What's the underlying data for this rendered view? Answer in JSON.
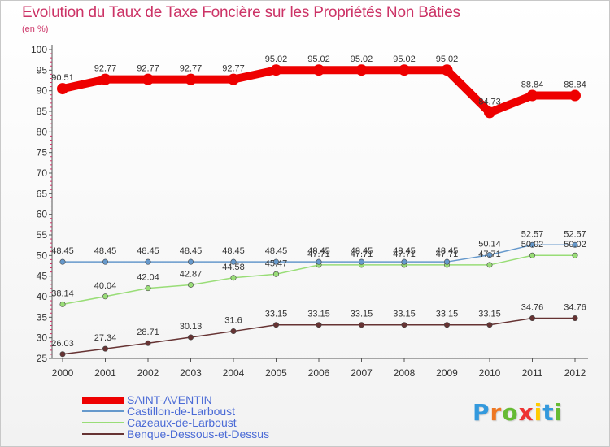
{
  "header": {
    "title": "Evolution du Taux de Taxe Foncière sur les Propriétés Non Bâties",
    "unit": "(en %)"
  },
  "chart_data": {
    "type": "line",
    "title": "Evolution du Taux de Taxe Foncière sur les Propriétés Non Bâties",
    "ylabel": "(en %)",
    "xlabel": "",
    "ylim": [
      25,
      100
    ],
    "yticks": [
      25,
      30,
      35,
      40,
      45,
      50,
      55,
      60,
      65,
      70,
      75,
      80,
      85,
      90,
      95,
      100
    ],
    "grid": false,
    "legend_position": "bottom-left",
    "x": [
      "2000",
      "2001",
      "2002",
      "2003",
      "2004",
      "2005",
      "2006",
      "2007",
      "2008",
      "2009",
      "2010",
      "2011",
      "2012"
    ],
    "series": [
      {
        "name": "SAINT-AVENTIN",
        "color": "#ee0000",
        "values": [
          90.51,
          92.77,
          92.77,
          92.77,
          92.77,
          95.02,
          95.02,
          95.02,
          95.02,
          95.02,
          84.73,
          88.84,
          88.84
        ],
        "labels": [
          "90.51",
          "92.77",
          "92.77",
          "92.77",
          "92.77",
          "95.02",
          "95.02",
          "95.02",
          "95.02",
          "95.02",
          "84.73",
          "88.84",
          "88.84"
        ]
      },
      {
        "name": "Castillon-de-Larboust",
        "color": "#6699cc",
        "values": [
          48.45,
          48.45,
          48.45,
          48.45,
          48.45,
          48.45,
          48.45,
          48.45,
          48.45,
          48.45,
          50.14,
          52.57,
          52.57
        ],
        "labels": [
          "48.45",
          "48.45",
          "48.45",
          "48.45",
          "48.45",
          "48.45",
          "48.45",
          "48.45",
          "48.45",
          "48.45",
          "50.14",
          "52.57",
          "52.57"
        ]
      },
      {
        "name": "Cazeaux-de-Larboust",
        "color": "#99dd77",
        "values": [
          38.14,
          40.04,
          42.04,
          42.87,
          44.58,
          45.47,
          47.71,
          47.71,
          47.71,
          47.71,
          47.71,
          50.02,
          50.02
        ],
        "labels": [
          "38.14",
          "40.04",
          "42.04",
          "42.87",
          "44.58",
          "45.47",
          "47.71",
          "47.71",
          "47.71",
          "47.71",
          "47.71",
          "50.02",
          "50.02"
        ]
      },
      {
        "name": "Benque-Dessous-et-Dessus",
        "color": "#663333",
        "values": [
          26.03,
          27.34,
          28.71,
          30.13,
          31.6,
          33.15,
          33.15,
          33.15,
          33.15,
          33.15,
          33.15,
          34.76,
          34.76
        ],
        "labels": [
          "26.03",
          "27.34",
          "28.71",
          "30.13",
          "31.6",
          "33.15",
          "33.15",
          "33.15",
          "33.15",
          "33.15",
          "33.15",
          "34.76",
          "34.76"
        ]
      }
    ]
  },
  "logo": {
    "letters": [
      "P",
      "r",
      "o",
      "x",
      "i",
      "t",
      "i"
    ],
    "colors": [
      "#3399dd",
      "#ee7722",
      "#66bb33",
      "#ee3333",
      "#ffcc00",
      "#3399dd",
      "#66bb33"
    ]
  }
}
